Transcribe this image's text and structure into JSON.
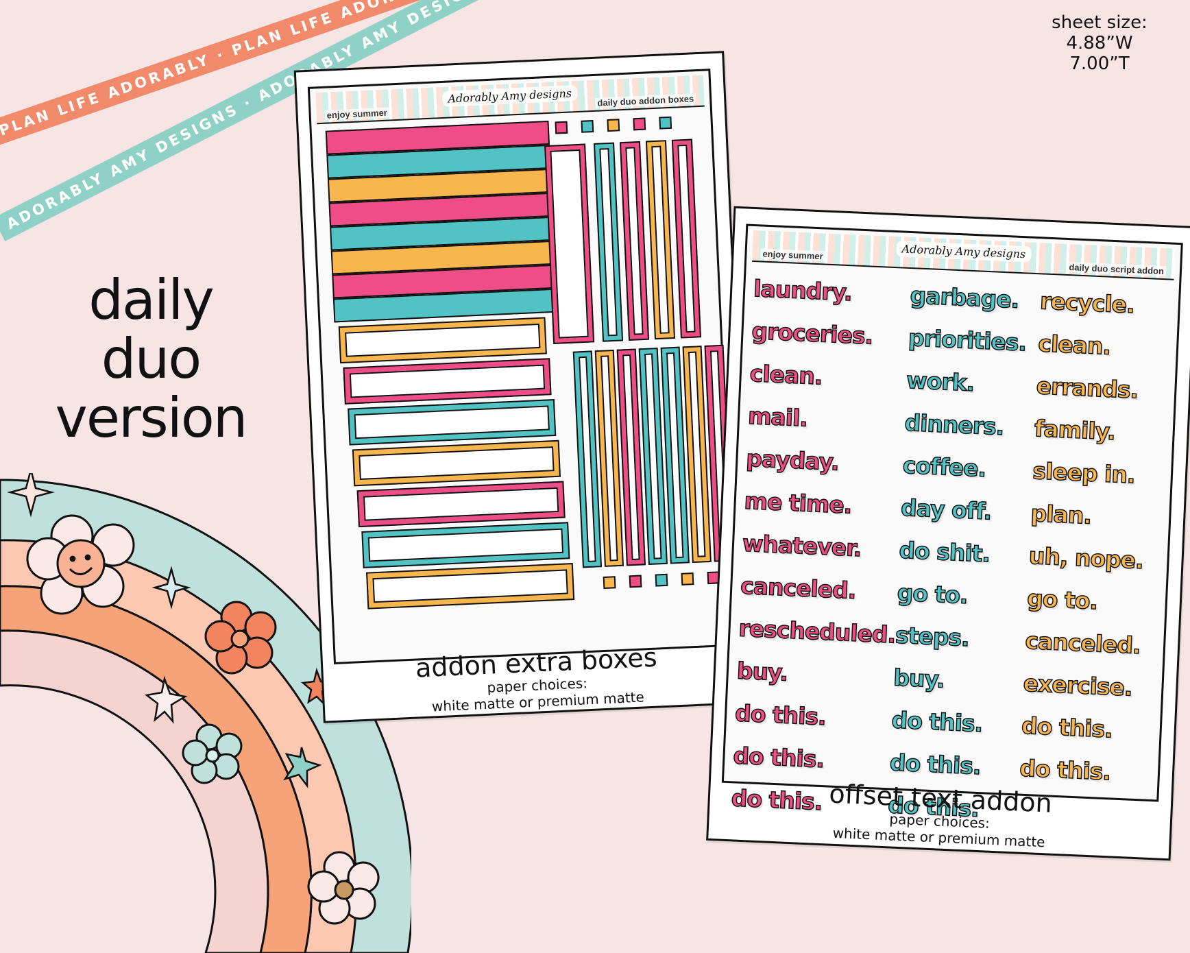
{
  "ribbons": {
    "top": "PLAN LIFE ADORABLY · PLAN LIFE ADORABLY · PLAN LIFE ADORABLY · ",
    "bottom": "ADORABLY AMY DESIGNS · ADORABLY AMY DESIGNS · ADORABLY AMY DESIGNS · "
  },
  "sheet_size": {
    "line1": "sheet size:",
    "line2": "4.88”W",
    "line3": "7.00”T"
  },
  "version": {
    "line1": "daily",
    "line2": "duo",
    "line3": "version"
  },
  "colors": {
    "pink": "#ee4d85",
    "teal": "#52c3c5",
    "orange": "#f9b64e",
    "background": "#f6e5e4"
  },
  "sheet1": {
    "theme": "enjoy summer",
    "logo": "Adorably Amy designs",
    "kit": "daily duo addon boxes",
    "caption": "addon extra boxes",
    "paper_label": "paper choices:",
    "paper_options": "white matte or premium matte",
    "stripe_colors": [
      "pink",
      "teal",
      "orange",
      "pink",
      "teal",
      "orange",
      "pink",
      "teal"
    ],
    "label_colors": [
      "orange",
      "pink",
      "teal",
      "orange",
      "pink",
      "teal",
      "orange"
    ],
    "top_squares": [
      "pink",
      "teal",
      "orange",
      "pink",
      "teal"
    ],
    "bottom_squares": [
      "orange",
      "pink",
      "teal",
      "orange",
      "pink"
    ],
    "upper_bars": [
      "pink",
      "teal",
      "pink",
      "orange",
      "pink"
    ],
    "lower_bars": [
      "teal",
      "orange",
      "pink",
      "teal",
      "teal",
      "orange",
      "pink"
    ]
  },
  "sheet2": {
    "theme": "enjoy summer",
    "logo": "Adorably Amy designs",
    "kit": "daily duo script addon",
    "caption": "offset text addon",
    "paper_label": "paper choices:",
    "paper_options": "white matte or premium matte",
    "words": [
      {
        "text": "laundry.",
        "color": "pink"
      },
      {
        "text": "garbage.",
        "color": "teal"
      },
      {
        "text": "recycle.",
        "color": "orange"
      },
      {
        "text": "groceries.",
        "color": "pink"
      },
      {
        "text": "priorities.",
        "color": "teal"
      },
      {
        "text": "clean.",
        "color": "orange"
      },
      {
        "text": "clean.",
        "color": "pink"
      },
      {
        "text": "work.",
        "color": "teal"
      },
      {
        "text": "errands.",
        "color": "orange"
      },
      {
        "text": "mail.",
        "color": "pink"
      },
      {
        "text": "dinners.",
        "color": "teal"
      },
      {
        "text": "family.",
        "color": "orange"
      },
      {
        "text": "payday.",
        "color": "pink"
      },
      {
        "text": "coffee.",
        "color": "teal"
      },
      {
        "text": "sleep in.",
        "color": "orange"
      },
      {
        "text": "me time.",
        "color": "pink"
      },
      {
        "text": "day off.",
        "color": "teal"
      },
      {
        "text": "plan.",
        "color": "orange"
      },
      {
        "text": "whatever.",
        "color": "pink"
      },
      {
        "text": "do shit.",
        "color": "teal"
      },
      {
        "text": "uh, nope.",
        "color": "orange"
      },
      {
        "text": "canceled.",
        "color": "pink"
      },
      {
        "text": "go to.",
        "color": "teal"
      },
      {
        "text": "go to.",
        "color": "orange"
      },
      {
        "text": "rescheduled.",
        "color": "pink"
      },
      {
        "text": "steps.",
        "color": "teal"
      },
      {
        "text": "canceled.",
        "color": "orange"
      },
      {
        "text": "buy.",
        "color": "pink"
      },
      {
        "text": "buy.",
        "color": "teal"
      },
      {
        "text": "exercise.",
        "color": "orange"
      },
      {
        "text": "do this.",
        "color": "pink"
      },
      {
        "text": "do this.",
        "color": "teal"
      },
      {
        "text": "do this.",
        "color": "orange"
      },
      {
        "text": "do this.",
        "color": "pink"
      },
      {
        "text": "do this.",
        "color": "teal"
      },
      {
        "text": "do this.",
        "color": "orange"
      },
      {
        "text": "do this.",
        "color": "pink"
      },
      {
        "text": "do this.",
        "color": "teal"
      }
    ]
  }
}
